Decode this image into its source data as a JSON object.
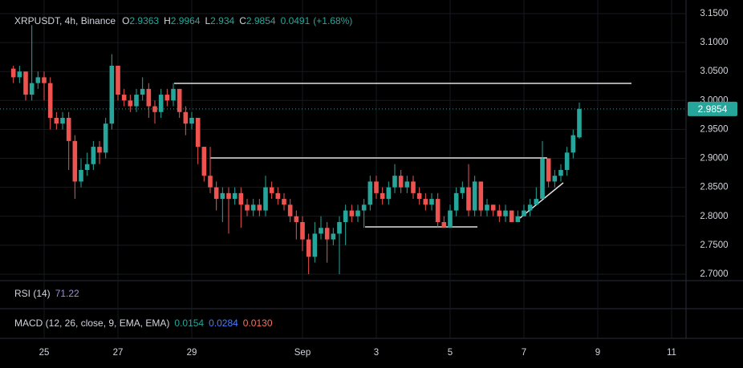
{
  "chart_data": {
    "type": "candlestick",
    "title": "XRPUSDT, 4h, Binance",
    "ohlc_letters": [
      "O",
      "H",
      "L",
      "C"
    ],
    "change": 0.0491,
    "change_pct": {
      "value": 1.68,
      "label": "(+1.68%)"
    },
    "up_color": "#26a69a",
    "down_color": "#ef5350",
    "grid": true,
    "x": [
      -20,
      -16,
      -12,
      -8,
      -4,
      0,
      4,
      8,
      12,
      16,
      20,
      24,
      28,
      32,
      36,
      40,
      44,
      48,
      52,
      56,
      60,
      64,
      68,
      72,
      76,
      80,
      84,
      88,
      92,
      96,
      100,
      104,
      108,
      112,
      116,
      120,
      124,
      128,
      132,
      136,
      140,
      144,
      148,
      152,
      156,
      160,
      164,
      168,
      172,
      176,
      180,
      184,
      188,
      192,
      196,
      200,
      204,
      208,
      212,
      216,
      220,
      224,
      228,
      232,
      236,
      240,
      244,
      248,
      252,
      256,
      260,
      264,
      268,
      272,
      276,
      280,
      284,
      288,
      292,
      296,
      300,
      304,
      308,
      312,
      316,
      320,
      324,
      328,
      332,
      336,
      340,
      344,
      348
    ],
    "open": [
      3.055,
      3.04,
      3.05,
      3.01,
      3.03,
      3.04,
      3.03,
      2.97,
      2.96,
      2.97,
      2.93,
      2.86,
      2.88,
      2.89,
      2.92,
      2.91,
      2.96,
      3.06,
      3.01,
      3.0,
      2.99,
      3.01,
      3.02,
      2.99,
      2.98,
      3.01,
      3.0,
      3.02,
      2.98,
      2.96,
      2.97,
      2.92,
      2.87,
      2.85,
      2.83,
      2.84,
      2.83,
      2.84,
      2.82,
      2.81,
      2.82,
      2.81,
      2.85,
      2.84,
      2.83,
      2.82,
      2.8,
      2.79,
      2.76,
      2.73,
      2.77,
      2.78,
      2.76,
      2.77,
      2.79,
      2.81,
      2.8,
      2.81,
      2.82,
      2.86,
      2.84,
      2.83,
      2.85,
      2.87,
      2.85,
      2.86,
      2.84,
      2.83,
      2.82,
      2.83,
      2.79,
      2.78,
      2.81,
      2.84,
      2.85,
      2.81,
      2.86,
      2.81,
      2.82,
      2.81,
      2.8,
      2.81,
      2.79,
      2.8,
      2.81,
      2.82,
      2.83,
      2.9,
      2.86,
      2.87,
      2.88,
      2.91,
      2.9363
    ],
    "high": [
      3.06,
      3.06,
      3.05,
      3.13,
      3.05,
      3.05,
      3.04,
      2.98,
      2.98,
      2.98,
      2.94,
      2.9,
      2.91,
      2.93,
      2.93,
      2.97,
      3.08,
      3.06,
      3.02,
      3.01,
      3.02,
      3.04,
      3.03,
      3.0,
      3.02,
      3.02,
      3.03,
      3.02,
      2.99,
      2.98,
      2.97,
      2.92,
      2.92,
      2.86,
      2.85,
      2.85,
      2.85,
      2.85,
      2.83,
      2.83,
      2.83,
      2.87,
      2.86,
      2.85,
      2.84,
      2.83,
      2.81,
      2.8,
      2.77,
      2.79,
      2.8,
      2.79,
      2.78,
      2.8,
      2.82,
      2.82,
      2.82,
      2.83,
      2.87,
      2.87,
      2.85,
      2.86,
      2.89,
      2.88,
      2.87,
      2.87,
      2.85,
      2.84,
      2.84,
      2.84,
      2.8,
      2.82,
      2.85,
      2.86,
      2.89,
      2.87,
      2.86,
      2.83,
      2.82,
      2.82,
      2.82,
      2.81,
      2.81,
      2.82,
      2.83,
      2.85,
      2.93,
      2.9,
      2.88,
      2.89,
      2.92,
      2.95,
      2.9964
    ],
    "low": [
      3.03,
      3.03,
      3.0,
      3.0,
      3.02,
      3.0,
      2.95,
      2.95,
      2.95,
      2.88,
      2.83,
      2.85,
      2.87,
      2.88,
      2.89,
      2.9,
      2.95,
      3.0,
      2.99,
      2.98,
      2.98,
      3.0,
      2.97,
      2.96,
      2.97,
      2.99,
      2.99,
      2.97,
      2.94,
      2.95,
      2.89,
      2.86,
      2.84,
      2.81,
      2.79,
      2.77,
      2.82,
      2.78,
      2.8,
      2.8,
      2.8,
      2.8,
      2.83,
      2.82,
      2.81,
      2.79,
      2.76,
      2.74,
      2.7,
      2.72,
      2.76,
      2.72,
      2.75,
      2.7,
      2.75,
      2.79,
      2.79,
      2.78,
      2.81,
      2.83,
      2.82,
      2.82,
      2.84,
      2.84,
      2.84,
      2.83,
      2.82,
      2.81,
      2.81,
      2.78,
      2.78,
      2.78,
      2.8,
      2.83,
      2.8,
      2.8,
      2.8,
      2.8,
      2.8,
      2.79,
      2.79,
      2.79,
      2.79,
      2.8,
      2.8,
      2.82,
      2.83,
      2.85,
      2.85,
      2.86,
      2.87,
      2.9,
      2.934
    ],
    "close": [
      3.04,
      3.05,
      3.01,
      3.03,
      3.04,
      3.03,
      2.97,
      2.96,
      2.97,
      2.93,
      2.86,
      2.88,
      2.89,
      2.92,
      2.91,
      2.96,
      3.06,
      3.01,
      3.0,
      2.99,
      3.01,
      3.02,
      2.99,
      2.98,
      3.01,
      3.0,
      3.02,
      2.98,
      2.96,
      2.97,
      2.92,
      2.87,
      2.85,
      2.83,
      2.84,
      2.83,
      2.84,
      2.82,
      2.81,
      2.82,
      2.81,
      2.85,
      2.84,
      2.83,
      2.82,
      2.8,
      2.79,
      2.76,
      2.73,
      2.77,
      2.78,
      2.76,
      2.77,
      2.79,
      2.81,
      2.8,
      2.81,
      2.82,
      2.86,
      2.84,
      2.83,
      2.85,
      2.87,
      2.85,
      2.86,
      2.84,
      2.83,
      2.82,
      2.83,
      2.79,
      2.78,
      2.81,
      2.84,
      2.85,
      2.81,
      2.86,
      2.81,
      2.82,
      2.81,
      2.8,
      2.81,
      2.79,
      2.8,
      2.81,
      2.82,
      2.83,
      2.9,
      2.86,
      2.87,
      2.88,
      2.91,
      2.94,
      2.9854
    ],
    "xlim": [
      -28.7,
      417.4
    ],
    "xticks": [
      {
        "value": 0,
        "label": "25"
      },
      {
        "value": 48,
        "label": "27"
      },
      {
        "value": 96,
        "label": "29"
      },
      {
        "value": 168,
        "label": "Sep"
      },
      {
        "value": 216,
        "label": "3"
      },
      {
        "value": 264,
        "label": "5"
      },
      {
        "value": 312,
        "label": "7"
      },
      {
        "value": 360,
        "label": "9"
      },
      {
        "value": 408,
        "label": "11"
      }
    ],
    "ylim": [
      2.6889,
      3.1735
    ],
    "yticks": [
      {
        "value": 2.7,
        "label": "2.7000"
      },
      {
        "value": 2.75,
        "label": "2.7500"
      },
      {
        "value": 2.8,
        "label": "2.8000"
      },
      {
        "value": 2.85,
        "label": "2.8500"
      },
      {
        "value": 2.9,
        "label": "2.9000"
      },
      {
        "value": 2.95,
        "label": "2.9500"
      },
      {
        "value": 3.0,
        "label": "3.0000"
      },
      {
        "value": 3.05,
        "label": "3.0500"
      },
      {
        "value": 3.1,
        "label": "3.1000"
      },
      {
        "value": 3.15,
        "label": "3.1500"
      }
    ],
    "indicators": [
      {
        "label": "RSI (14)",
        "values": [
          71.22
        ],
        "colors": [
          "#9c8fd6"
        ]
      },
      {
        "label": "MACD (12, 26, close, 9, EMA, EMA)",
        "values": [
          0.0154,
          0.0284,
          {
            "value": 0.013,
            "label": "0.0130"
          }
        ],
        "colors": [
          "#26a69a",
          "#4a7cff",
          "#f7725f"
        ]
      }
    ]
  }
}
